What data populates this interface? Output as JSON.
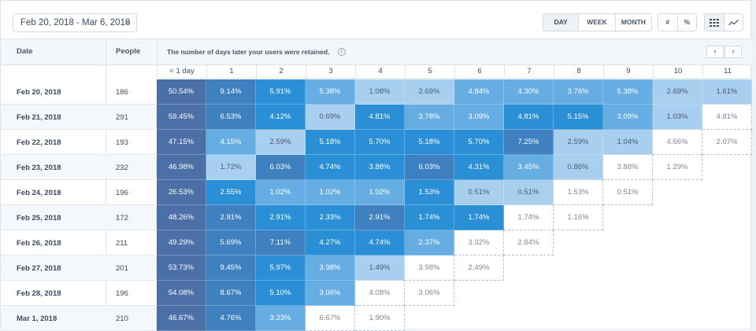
{
  "toolbar": {
    "date_range": "Feb 20, 2018 - Mar 6, 2018",
    "granularity": [
      "DAY",
      "WEEK",
      "MONTH"
    ],
    "active_granularity": "DAY",
    "value_modes": [
      "#",
      "%"
    ],
    "view_modes": [
      "grid-icon",
      "line-chart-icon"
    ]
  },
  "header": {
    "date_label": "Date",
    "people_label": "People",
    "description": "The number of days later your users were retained.",
    "prev": "‹",
    "next": "›"
  },
  "columns": [
    "< 1 day",
    "1",
    "2",
    "3",
    "4",
    "5",
    "6",
    "7",
    "8",
    "9",
    "10",
    "11"
  ],
  "rows": [
    {
      "date": "Feb 20, 2018",
      "people": "186",
      "values": [
        "50.54%",
        "9.14%",
        "5.91%",
        "5.38%",
        "1.08%",
        "2.69%",
        "4.84%",
        "4.30%",
        "3.76%",
        "5.38%",
        "2.69%",
        "1.61%"
      ]
    },
    {
      "date": "Feb 21, 2018",
      "people": "291",
      "values": [
        "59.45%",
        "6.53%",
        "4.12%",
        "0.69%",
        "4.81%",
        "3.78%",
        "3.09%",
        "4.81%",
        "5.15%",
        "3.09%",
        "1.03%",
        "4.81%"
      ]
    },
    {
      "date": "Feb 22, 2018",
      "people": "193",
      "values": [
        "47.15%",
        "4.15%",
        "2.59%",
        "5.18%",
        "5.70%",
        "5.18%",
        "5.70%",
        "7.25%",
        "2.59%",
        "1.04%",
        "4.66%",
        "2.07%"
      ]
    },
    {
      "date": "Feb 23, 2018",
      "people": "232",
      "values": [
        "46.98%",
        "1.72%",
        "6.03%",
        "4.74%",
        "3.88%",
        "6.03%",
        "4.31%",
        "3.45%",
        "0.86%",
        "3.88%",
        "1.29%"
      ]
    },
    {
      "date": "Feb 24, 2018",
      "people": "196",
      "values": [
        "26.53%",
        "2.55%",
        "1.02%",
        "1.02%",
        "1.02%",
        "1.53%",
        "0.51%",
        "0.51%",
        "1.53%",
        "0.51%"
      ]
    },
    {
      "date": "Feb 25, 2018",
      "people": "172",
      "values": [
        "48.26%",
        "2.91%",
        "2.91%",
        "2.33%",
        "2.91%",
        "1.74%",
        "1.74%",
        "1.74%",
        "1.16%"
      ]
    },
    {
      "date": "Feb 26, 2018",
      "people": "211",
      "values": [
        "49.29%",
        "5.69%",
        "7.11%",
        "4.27%",
        "4.74%",
        "2.37%",
        "3.32%",
        "2.84%"
      ]
    },
    {
      "date": "Feb 27, 2018",
      "people": "201",
      "values": [
        "53.73%",
        "9.45%",
        "5.97%",
        "3.98%",
        "1.49%",
        "3.98%",
        "2.49%"
      ]
    },
    {
      "date": "Feb 28, 2018",
      "people": "196",
      "values": [
        "54.08%",
        "8.67%",
        "5.10%",
        "3.06%",
        "4.08%",
        "3.06%"
      ]
    },
    {
      "date": "Mar 1, 2018",
      "people": "210",
      "values": [
        "46.67%",
        "4.76%",
        "3.33%",
        "6.67%",
        "1.90%"
      ]
    }
  ],
  "colors": {
    "c0": "#4a70a7",
    "c1": "#3e80c0",
    "c2": "#2b8fd5",
    "c3": "#66ade4",
    "c4": "#a9cfee",
    "light_text": "#7e8896"
  },
  "shading": [
    [
      "c0",
      "c1",
      "c2",
      "c3",
      "c4",
      "c4",
      "c3",
      "c3",
      "c3",
      "c3",
      "c4",
      "c4"
    ],
    [
      "c0",
      "c1",
      "c2",
      "c4",
      "c2",
      "c3",
      "c3",
      "c2",
      "c2",
      "c3",
      "c4",
      "w"
    ],
    [
      "c0",
      "c3",
      "c4",
      "c2",
      "c2",
      "c2",
      "c2",
      "c1",
      "c4",
      "c4",
      "w",
      "d"
    ],
    [
      "c0",
      "c4",
      "c1",
      "c2",
      "c2",
      "c1",
      "c2",
      "c3",
      "c4",
      "w",
      "d"
    ],
    [
      "c0",
      "c2",
      "c3",
      "c3",
      "c3",
      "c2",
      "c4",
      "c4",
      "w",
      "d"
    ],
    [
      "c0",
      "c1",
      "c2",
      "c2",
      "c1",
      "c2",
      "c2",
      "w",
      "d"
    ],
    [
      "c0",
      "c1",
      "c1",
      "c2",
      "c2",
      "c3",
      "w",
      "d"
    ],
    [
      "c0",
      "c1",
      "c2",
      "c3",
      "c4",
      "w",
      "d"
    ],
    [
      "c0",
      "c1",
      "c2",
      "c3",
      "w",
      "d"
    ],
    [
      "c0",
      "c1",
      "c3",
      "w",
      "d"
    ]
  ]
}
